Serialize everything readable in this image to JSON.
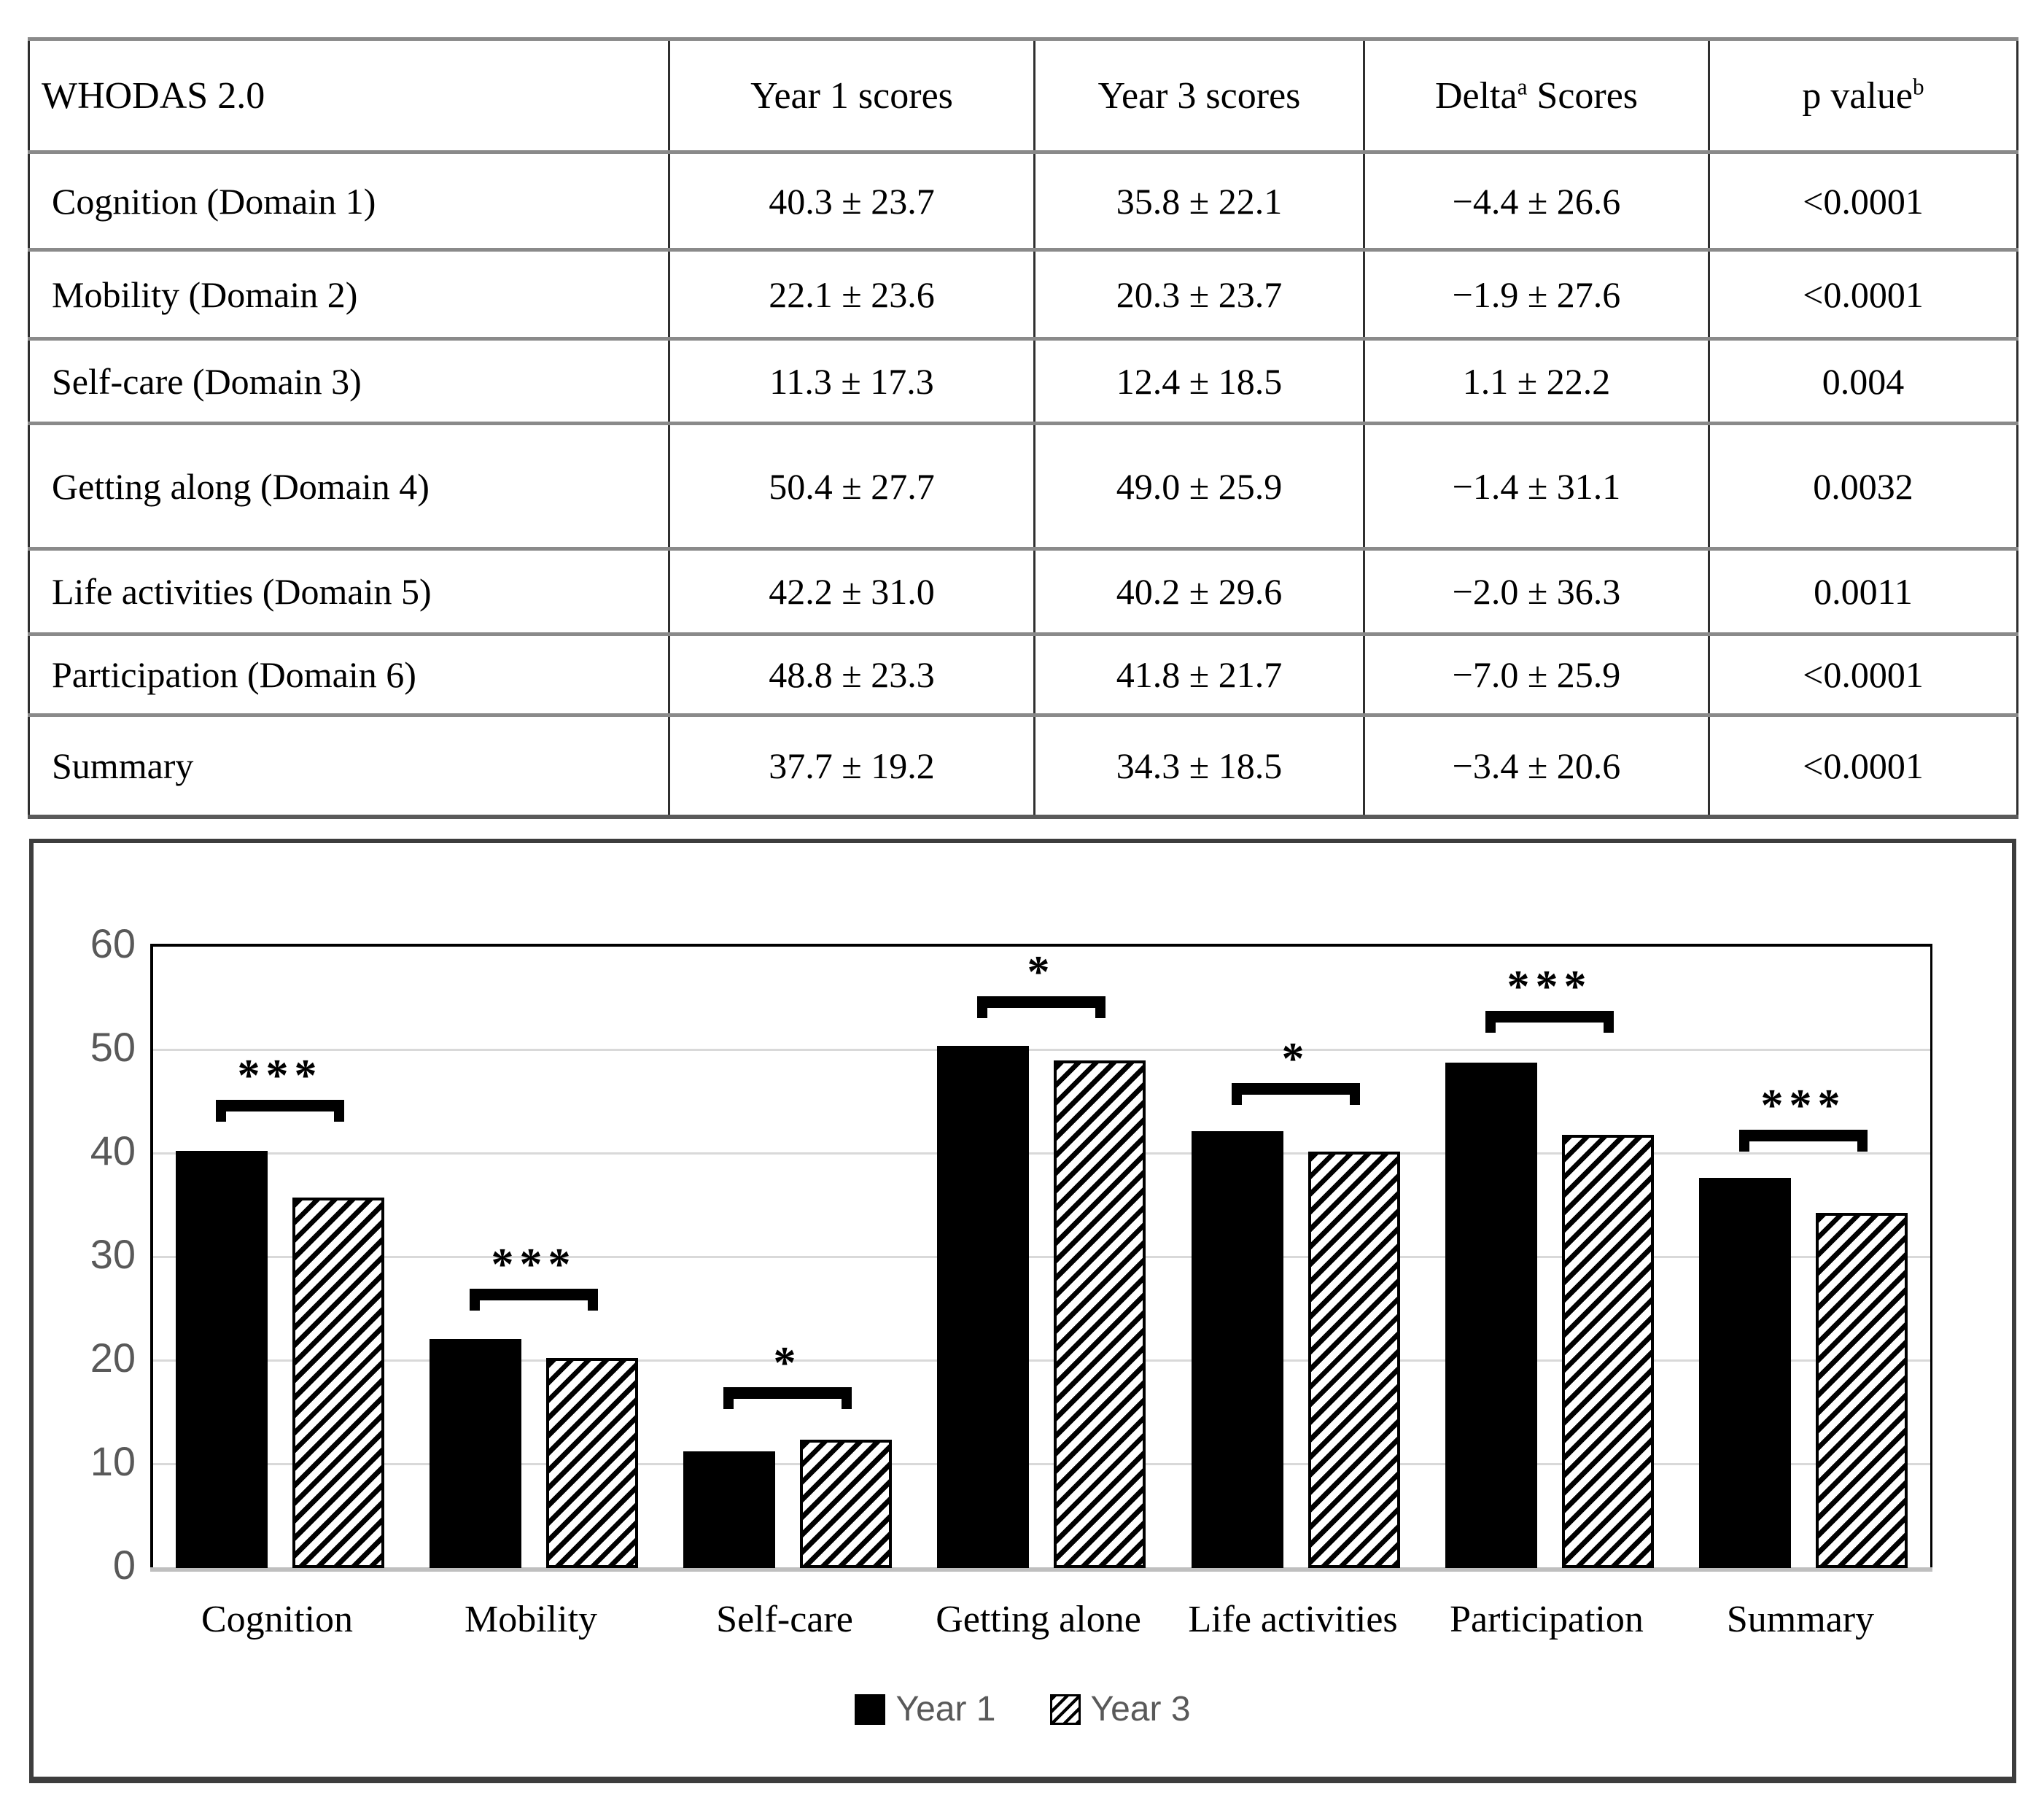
{
  "table": {
    "columns": [
      {
        "text": "WHODAS 2.0",
        "sup": "",
        "after": ""
      },
      {
        "text": "Year 1 scores",
        "sup": "",
        "after": ""
      },
      {
        "text": "Year 3 scores",
        "sup": "",
        "after": ""
      },
      {
        "text": "Delta",
        "sup": "a",
        "after": " Scores"
      },
      {
        "text": "p value",
        "sup": "b",
        "after": ""
      }
    ],
    "rows": [
      {
        "label": "Cognition (Domain 1)",
        "year1": "40.3 ± 23.7",
        "year3": "35.8 ± 22.1",
        "delta": "−4.4 ± 26.6",
        "p": "<0.0001"
      },
      {
        "label": "Mobility (Domain 2)",
        "year1": "22.1 ± 23.6",
        "year3": "20.3 ± 23.7",
        "delta": "−1.9 ± 27.6",
        "p": "<0.0001"
      },
      {
        "label": "Self-care (Domain 3)",
        "year1": "11.3 ± 17.3",
        "year3": "12.4 ± 18.5",
        "delta": "1.1 ± 22.2",
        "p": "0.004"
      },
      {
        "label": "Getting along (Domain 4)",
        "year1": "50.4 ± 27.7",
        "year3": "49.0 ± 25.9",
        "delta": "−1.4 ± 31.1",
        "p": "0.0032"
      },
      {
        "label": "Life activities (Domain 5)",
        "year1": "42.2 ± 31.0",
        "year3": "40.2 ± 29.6",
        "delta": "−2.0 ± 36.3",
        "p": "0.0011"
      },
      {
        "label": "Participation (Domain 6)",
        "year1": "48.8 ± 23.3",
        "year3": "41.8 ± 21.7",
        "delta": "−7.0 ± 25.9",
        "p": "<0.0001"
      },
      {
        "label": "Summary",
        "year1": "37.7 ± 19.2",
        "year3": "34.3 ± 18.5",
        "delta": "−3.4 ± 20.6",
        "p": "<0.0001"
      }
    ]
  },
  "chart_data": {
    "type": "bar",
    "categories": [
      "Cognition",
      "Mobility",
      "Self-care",
      "Getting alone",
      "Life activities",
      "Participation",
      "Summary"
    ],
    "series": [
      {
        "name": "Year 1",
        "values": [
          40.3,
          22.1,
          11.3,
          50.4,
          42.2,
          48.8,
          37.7
        ]
      },
      {
        "name": "Year 3",
        "values": [
          35.8,
          20.3,
          12.4,
          49.0,
          40.2,
          41.8,
          34.3
        ]
      }
    ],
    "ylim": [
      0,
      60
    ],
    "yticks": [
      0,
      10,
      20,
      30,
      40,
      50,
      60
    ],
    "grid": true,
    "legend_position": "bottom",
    "bar_styles": {
      "Year 1": "solid-black",
      "Year 3": "diagonal-hatch"
    },
    "significance": [
      {
        "category": "Cognition",
        "stars": "***",
        "bracket_y": 45.2
      },
      {
        "category": "Mobility",
        "stars": "***",
        "bracket_y": 27.0
      },
      {
        "category": "Self-care",
        "stars": "*",
        "bracket_y": 17.5
      },
      {
        "category": "Getting alone",
        "stars": "*",
        "bracket_y": 55.2
      },
      {
        "category": "Life activities",
        "stars": "*",
        "bracket_y": 46.8
      },
      {
        "category": "Participation",
        "stars": "***",
        "bracket_y": 53.8
      },
      {
        "category": "Summary",
        "stars": "***",
        "bracket_y": 42.3
      }
    ],
    "axis_text_color": "#595959",
    "gridline_color": "#d9d9d9",
    "bar_color": "#000000"
  }
}
